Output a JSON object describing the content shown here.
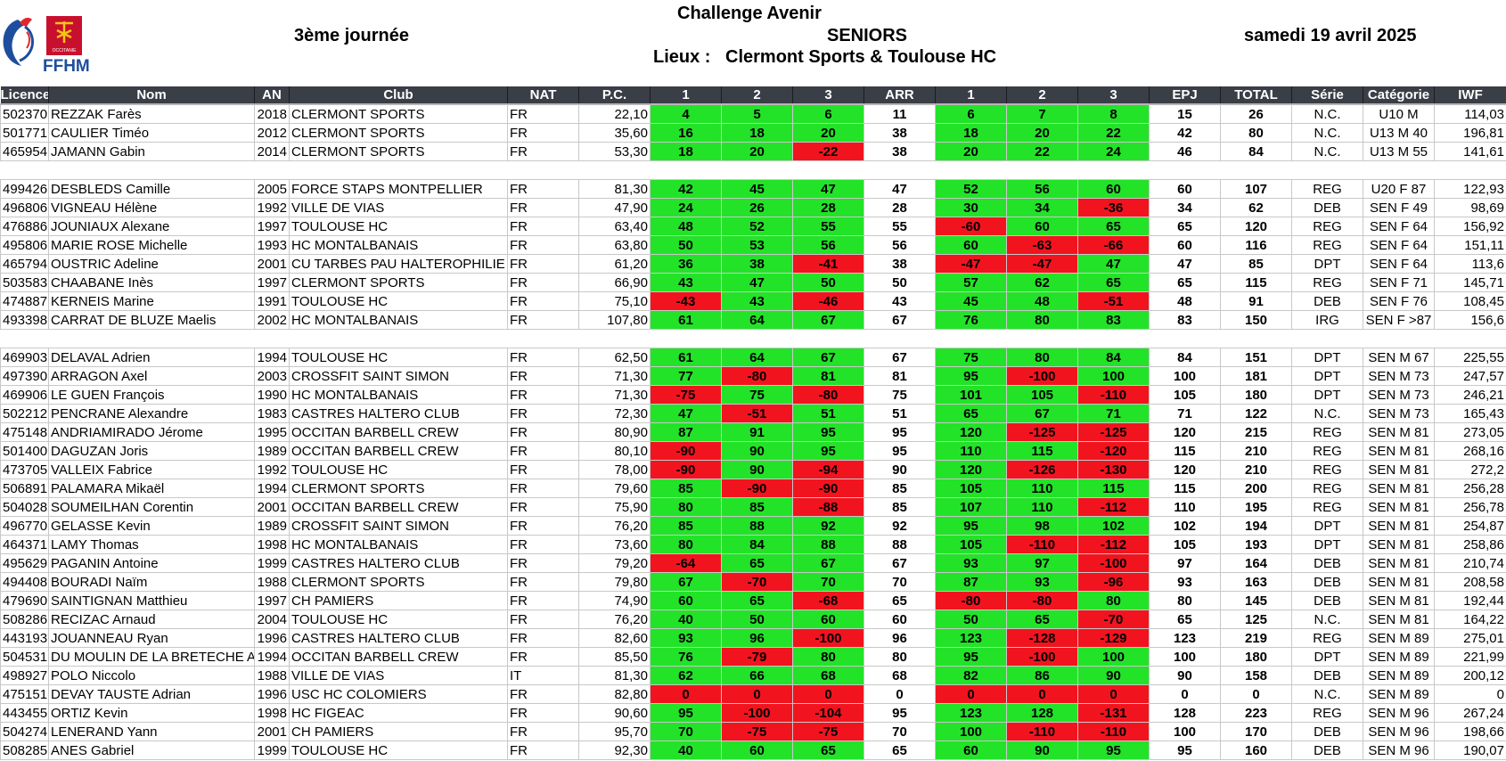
{
  "header": {
    "title": "Challenge Avenir",
    "journee": "3ème journée",
    "category": "SENIORS",
    "date": "samedi 19 avril 2025",
    "lieux_label": "Lieux :",
    "lieux_value": "Clermont Sports & Toulouse HC",
    "logo_text": "FFHM",
    "logo_small": "OCCITANIE"
  },
  "columns": [
    "Licence",
    "Nom",
    "AN",
    "Club",
    "NAT",
    "P.C.",
    "1",
    "2",
    "3",
    "ARR",
    "1",
    "2",
    "3",
    "EPJ",
    "TOTAL",
    "Série",
    "Catégorie",
    "IWF"
  ],
  "colors": {
    "success": "#22e328",
    "fail": "#f1141f",
    "header_bg": "#3a3e46"
  },
  "groups": [
    [
      [
        "502370",
        "REZZAK Farès",
        "2018",
        "CLERMONT SPORTS",
        "FR",
        "22,10",
        "4",
        "5",
        "6",
        "11",
        "6",
        "7",
        "8",
        "15",
        "26",
        "N.C.",
        "U10 M",
        "114,03"
      ],
      [
        "501771",
        "CAULIER Timéo",
        "2012",
        "CLERMONT SPORTS",
        "FR",
        "35,60",
        "16",
        "18",
        "20",
        "38",
        "18",
        "20",
        "22",
        "42",
        "80",
        "N.C.",
        "U13 M 40",
        "196,81"
      ],
      [
        "465954",
        "JAMANN Gabin",
        "2014",
        "CLERMONT SPORTS",
        "FR",
        "53,30",
        "18",
        "20",
        "-22",
        "38",
        "20",
        "22",
        "24",
        "46",
        "84",
        "N.C.",
        "U13 M 55",
        "141,61"
      ]
    ],
    [
      [
        "499426",
        "DESBLEDS Camille",
        "2005",
        "FORCE STAPS MONTPELLIER",
        "FR",
        "81,30",
        "42",
        "45",
        "47",
        "47",
        "52",
        "56",
        "60",
        "60",
        "107",
        "REG",
        "U20 F 87",
        "122,93"
      ],
      [
        "496806",
        "VIGNEAU Hélène",
        "1992",
        "VILLE DE VIAS",
        "FR",
        "47,90",
        "24",
        "26",
        "28",
        "28",
        "30",
        "34",
        "-36",
        "34",
        "62",
        "DEB",
        "SEN F 49",
        "98,69"
      ],
      [
        "476886",
        "JOUNIAUX Alexane",
        "1997",
        "TOULOUSE HC",
        "FR",
        "63,40",
        "48",
        "52",
        "55",
        "55",
        "-60",
        "60",
        "65",
        "65",
        "120",
        "REG",
        "SEN F 64",
        "156,92"
      ],
      [
        "495806",
        "MARIE ROSE Michelle",
        "1993",
        "HC MONTALBANAIS",
        "FR",
        "63,80",
        "50",
        "53",
        "56",
        "56",
        "60",
        "-63",
        "-66",
        "60",
        "116",
        "REG",
        "SEN F 64",
        "151,11"
      ],
      [
        "465794",
        "OUSTRIC Adeline",
        "2001",
        "CU TARBES PAU HALTEROPHILIE",
        "FR",
        "61,20",
        "36",
        "38",
        "-41",
        "38",
        "-47",
        "-47",
        "47",
        "47",
        "85",
        "DPT",
        "SEN F 64",
        "113,6"
      ],
      [
        "503583",
        "CHAABANE Inès",
        "1997",
        "CLERMONT SPORTS",
        "FR",
        "66,90",
        "43",
        "47",
        "50",
        "50",
        "57",
        "62",
        "65",
        "65",
        "115",
        "REG",
        "SEN F 71",
        "145,71"
      ],
      [
        "474887",
        "KERNEIS Marine",
        "1991",
        "TOULOUSE HC",
        "FR",
        "75,10",
        "-43",
        "43",
        "-46",
        "43",
        "45",
        "48",
        "-51",
        "48",
        "91",
        "DEB",
        "SEN F 76",
        "108,45"
      ],
      [
        "493398",
        "CARRAT DE BLUZE Maelis",
        "2002",
        "HC MONTALBANAIS",
        "FR",
        "107,80",
        "61",
        "64",
        "67",
        "67",
        "76",
        "80",
        "83",
        "83",
        "150",
        "IRG",
        "SEN F >87",
        "156,6"
      ]
    ],
    [
      [
        "469903",
        "DELAVAL Adrien",
        "1994",
        "TOULOUSE HC",
        "FR",
        "62,50",
        "61",
        "64",
        "67",
        "67",
        "75",
        "80",
        "84",
        "84",
        "151",
        "DPT",
        "SEN M 67",
        "225,55"
      ],
      [
        "497390",
        "ARRAGON Axel",
        "2003",
        "CROSSFIT SAINT SIMON",
        "FR",
        "71,30",
        "77",
        "-80",
        "81",
        "81",
        "95",
        "-100",
        "100",
        "100",
        "181",
        "DPT",
        "SEN M 73",
        "247,57"
      ],
      [
        "469906",
        "LE GUEN François",
        "1990",
        "HC MONTALBANAIS",
        "FR",
        "71,30",
        "-75",
        "75",
        "-80",
        "75",
        "101",
        "105",
        "-110",
        "105",
        "180",
        "DPT",
        "SEN M 73",
        "246,21"
      ],
      [
        "502212",
        "PENCRANE Alexandre",
        "1983",
        "CASTRES HALTERO CLUB",
        "FR",
        "72,30",
        "47",
        "-51",
        "51",
        "51",
        "65",
        "67",
        "71",
        "71",
        "122",
        "N.C.",
        "SEN M 73",
        "165,43"
      ],
      [
        "475148",
        "ANDRIAMIRADO Jérome",
        "1995",
        "OCCITAN BARBELL CREW",
        "FR",
        "80,90",
        "87",
        "91",
        "95",
        "95",
        "120",
        "-125",
        "-125",
        "120",
        "215",
        "REG",
        "SEN M 81",
        "273,05"
      ],
      [
        "501400",
        "DAGUZAN Joris",
        "1989",
        "OCCITAN BARBELL CREW",
        "FR",
        "80,10",
        "-90",
        "90",
        "95",
        "95",
        "110",
        "115",
        "-120",
        "115",
        "210",
        "REG",
        "SEN M 81",
        "268,16"
      ],
      [
        "473705",
        "VALLEIX Fabrice",
        "1992",
        "TOULOUSE HC",
        "FR",
        "78,00",
        "-90",
        "90",
        "-94",
        "90",
        "120",
        "-126",
        "-130",
        "120",
        "210",
        "REG",
        "SEN M 81",
        "272,2"
      ],
      [
        "506891",
        "PALAMARA Mikaël",
        "1994",
        "CLERMONT SPORTS",
        "FR",
        "79,60",
        "85",
        "-90",
        "-90",
        "85",
        "105",
        "110",
        "115",
        "115",
        "200",
        "REG",
        "SEN M 81",
        "256,28"
      ],
      [
        "504028",
        "SOUMEILHAN Corentin",
        "2001",
        "OCCITAN BARBELL CREW",
        "FR",
        "75,90",
        "80",
        "85",
        "-88",
        "85",
        "107",
        "110",
        "-112",
        "110",
        "195",
        "REG",
        "SEN M 81",
        "256,78"
      ],
      [
        "496770",
        "GELASSE Kevin",
        "1989",
        "CROSSFIT SAINT SIMON",
        "FR",
        "76,20",
        "85",
        "88",
        "92",
        "92",
        "95",
        "98",
        "102",
        "102",
        "194",
        "DPT",
        "SEN M 81",
        "254,87"
      ],
      [
        "464371",
        "LAMY Thomas",
        "1998",
        "HC MONTALBANAIS",
        "FR",
        "73,60",
        "80",
        "84",
        "88",
        "88",
        "105",
        "-110",
        "-112",
        "105",
        "193",
        "DPT",
        "SEN M 81",
        "258,86"
      ],
      [
        "495629",
        "PAGANIN Antoine",
        "1999",
        "CASTRES HALTERO CLUB",
        "FR",
        "79,20",
        "-64",
        "65",
        "67",
        "67",
        "93",
        "97",
        "-100",
        "97",
        "164",
        "DEB",
        "SEN M 81",
        "210,74"
      ],
      [
        "494408",
        "BOURADI Naïm",
        "1988",
        "CLERMONT SPORTS",
        "FR",
        "79,80",
        "67",
        "-70",
        "70",
        "70",
        "87",
        "93",
        "-96",
        "93",
        "163",
        "DEB",
        "SEN M 81",
        "208,58"
      ],
      [
        "479690",
        "SAINTIGNAN Matthieu",
        "1997",
        "CH PAMIERS",
        "FR",
        "74,90",
        "60",
        "65",
        "-68",
        "65",
        "-80",
        "-80",
        "80",
        "80",
        "145",
        "DEB",
        "SEN M 81",
        "192,44"
      ],
      [
        "508286",
        "RECIZAC Arnaud",
        "2004",
        "TOULOUSE HC",
        "FR",
        "76,20",
        "40",
        "50",
        "60",
        "60",
        "50",
        "65",
        "-70",
        "65",
        "125",
        "N.C.",
        "SEN M 81",
        "164,22"
      ],
      [
        "443193",
        "JOUANNEAU Ryan",
        "1996",
        "CASTRES HALTERO CLUB",
        "FR",
        "82,60",
        "93",
        "96",
        "-100",
        "96",
        "123",
        "-128",
        "-129",
        "123",
        "219",
        "REG",
        "SEN M 89",
        "275,01"
      ],
      [
        "504531",
        "DU MOULIN DE LA BRETECHE Ar",
        "1994",
        "OCCITAN BARBELL CREW",
        "FR",
        "85,50",
        "76",
        "-79",
        "80",
        "80",
        "95",
        "-100",
        "100",
        "100",
        "180",
        "DPT",
        "SEN M 89",
        "221,99"
      ],
      [
        "498927",
        "POLO Niccolo",
        "1988",
        "VILLE DE VIAS",
        "IT",
        "81,30",
        "62",
        "66",
        "68",
        "68",
        "82",
        "86",
        "90",
        "90",
        "158",
        "DEB",
        "SEN M 89",
        "200,12"
      ],
      [
        "475151",
        "DEVAY TAUSTE Adrian",
        "1996",
        "USC HC COLOMIERS",
        "FR",
        "82,80",
        "0",
        "0",
        "0",
        "0",
        "0",
        "0",
        "0",
        "0",
        "0",
        "N.C.",
        "SEN M 89",
        "0"
      ],
      [
        "443455",
        "ORTIZ Kevin",
        "1998",
        "HC FIGEAC",
        "FR",
        "90,60",
        "95",
        "-100",
        "-104",
        "95",
        "123",
        "128",
        "-131",
        "128",
        "223",
        "REG",
        "SEN M 96",
        "267,24"
      ],
      [
        "504274",
        "LENERAND Yann",
        "2001",
        "CH PAMIERS",
        "FR",
        "95,70",
        "70",
        "-75",
        "-75",
        "70",
        "100",
        "-110",
        "-110",
        "100",
        "170",
        "DEB",
        "SEN M 96",
        "198,66"
      ],
      [
        "508285",
        "ANES Gabriel",
        "1999",
        "TOULOUSE HC",
        "FR",
        "92,30",
        "40",
        "60",
        "65",
        "65",
        "60",
        "90",
        "95",
        "95",
        "160",
        "DEB",
        "SEN M 96",
        "190,07"
      ]
    ]
  ]
}
